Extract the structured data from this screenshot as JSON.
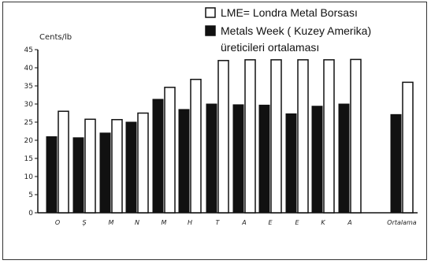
{
  "chart_data": {
    "type": "bar",
    "ylabel": "Cents/lb",
    "ylim": [
      0,
      45
    ],
    "yticks": [
      0,
      5,
      10,
      15,
      20,
      25,
      30,
      35,
      40,
      45
    ],
    "categories": [
      "O",
      "Ş",
      "M",
      "N",
      "M",
      "H",
      "T",
      "A",
      "E",
      "E",
      "K",
      "A",
      "Ortalama"
    ],
    "series": [
      {
        "name": "Metals Week ( Kuzey Amerika) üreticileri ortalaması",
        "fill": "#111111",
        "values": [
          21,
          20.7,
          22,
          25,
          31.3,
          28.5,
          30,
          29.8,
          29.7,
          27.3,
          29.4,
          30,
          27.1
        ]
      },
      {
        "name": "LME= Londra Metal Borsası",
        "fill": "#ffffff",
        "values": [
          28,
          25.8,
          25.7,
          27.5,
          34.6,
          36.8,
          42,
          42.2,
          42.2,
          42.2,
          42.2,
          42.3,
          36
        ]
      }
    ],
    "legend": {
      "position": "top-right",
      "lines": [
        "LME= Londra Metal Borsası",
        "Metals Week ( Kuzey Amerika)",
        "üreticileri ortalaması"
      ]
    },
    "grid": false
  }
}
